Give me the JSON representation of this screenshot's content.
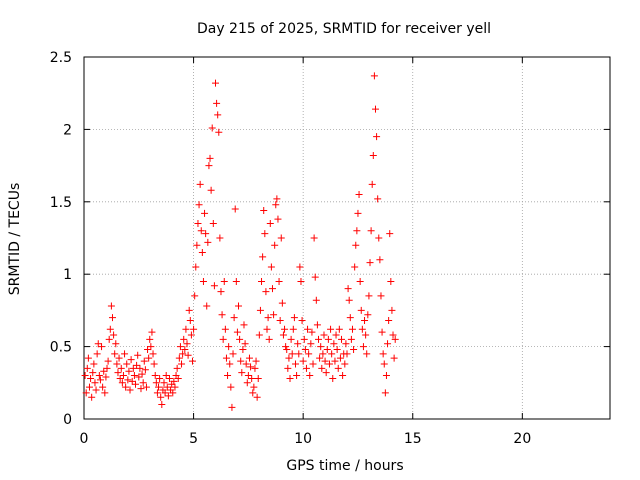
{
  "chart_data": {
    "type": "scatter",
    "title": "Day 215 of 2025, SRMTID for receiver yell",
    "xlabel": "GPS time / hours",
    "ylabel": "SRMTID / TECUs",
    "xlim": [
      0,
      24
    ],
    "ylim": [
      0,
      2.5
    ],
    "xticks": [
      0,
      5,
      10,
      15,
      20
    ],
    "xtick_labels": [
      "0",
      "5",
      "10",
      "15",
      "20"
    ],
    "yticks": [
      0,
      0.5,
      1,
      1.5,
      2,
      2.5
    ],
    "ytick_labels": [
      "0",
      "0.5",
      "1",
      "1.5",
      "2",
      "2.5"
    ],
    "grid": true,
    "marker": "+",
    "series_color": "#ff0000",
    "series": [
      {
        "name": "SRMTID",
        "points": [
          [
            0.05,
            0.3
          ],
          [
            0.1,
            0.18
          ],
          [
            0.15,
            0.35
          ],
          [
            0.2,
            0.42
          ],
          [
            0.25,
            0.22
          ],
          [
            0.3,
            0.28
          ],
          [
            0.35,
            0.15
          ],
          [
            0.4,
            0.32
          ],
          [
            0.45,
            0.38
          ],
          [
            0.5,
            0.25
          ],
          [
            0.55,
            0.2
          ],
          [
            0.6,
            0.45
          ],
          [
            0.65,
            0.52
          ],
          [
            0.7,
            0.3
          ],
          [
            0.75,
            0.27
          ],
          [
            0.8,
            0.5
          ],
          [
            0.85,
            0.22
          ],
          [
            0.9,
            0.33
          ],
          [
            0.95,
            0.18
          ],
          [
            1.0,
            0.29
          ],
          [
            1.05,
            0.35
          ],
          [
            1.1,
            0.4
          ],
          [
            1.15,
            0.55
          ],
          [
            1.2,
            0.62
          ],
          [
            1.25,
            0.78
          ],
          [
            1.3,
            0.7
          ],
          [
            1.35,
            0.58
          ],
          [
            1.4,
            0.45
          ],
          [
            1.45,
            0.52
          ],
          [
            1.5,
            0.38
          ],
          [
            1.55,
            0.32
          ],
          [
            1.6,
            0.42
          ],
          [
            1.65,
            0.28
          ],
          [
            1.7,
            0.35
          ],
          [
            1.75,
            0.25
          ],
          [
            1.8,
            0.3
          ],
          [
            1.85,
            0.45
          ],
          [
            1.9,
            0.22
          ],
          [
            1.95,
            0.38
          ],
          [
            2.0,
            0.27
          ],
          [
            2.05,
            0.33
          ],
          [
            2.1,
            0.2
          ],
          [
            2.15,
            0.41
          ],
          [
            2.2,
            0.26
          ],
          [
            2.25,
            0.35
          ],
          [
            2.3,
            0.3
          ],
          [
            2.35,
            0.24
          ],
          [
            2.4,
            0.37
          ],
          [
            2.45,
            0.44
          ],
          [
            2.5,
            0.29
          ],
          [
            2.55,
            0.35
          ],
          [
            2.6,
            0.21
          ],
          [
            2.65,
            0.31
          ],
          [
            2.7,
            0.25
          ],
          [
            2.75,
            0.4
          ],
          [
            2.8,
            0.34
          ],
          [
            2.85,
            0.22
          ],
          [
            2.9,
            0.48
          ],
          [
            2.95,
            0.42
          ],
          [
            3.0,
            0.55
          ],
          [
            3.05,
            0.5
          ],
          [
            3.1,
            0.6
          ],
          [
            3.15,
            0.45
          ],
          [
            3.2,
            0.38
          ],
          [
            3.25,
            0.3
          ],
          [
            3.3,
            0.25
          ],
          [
            3.35,
            0.18
          ],
          [
            3.4,
            0.22
          ],
          [
            3.45,
            0.28
          ],
          [
            3.5,
            0.15
          ],
          [
            3.55,
            0.1
          ],
          [
            3.6,
            0.2
          ],
          [
            3.65,
            0.25
          ],
          [
            3.7,
            0.18
          ],
          [
            3.75,
            0.3
          ],
          [
            3.8,
            0.22
          ],
          [
            3.85,
            0.16
          ],
          [
            3.9,
            0.28
          ],
          [
            3.95,
            0.2
          ],
          [
            4.0,
            0.24
          ],
          [
            4.05,
            0.18
          ],
          [
            4.1,
            0.26
          ],
          [
            4.15,
            0.22
          ],
          [
            4.2,
            0.3
          ],
          [
            4.25,
            0.35
          ],
          [
            4.3,
            0.28
          ],
          [
            4.35,
            0.42
          ],
          [
            4.4,
            0.5
          ],
          [
            4.45,
            0.38
          ],
          [
            4.5,
            0.45
          ],
          [
            4.55,
            0.55
          ],
          [
            4.6,
            0.48
          ],
          [
            4.65,
            0.62
          ],
          [
            4.7,
            0.52
          ],
          [
            4.75,
            0.44
          ],
          [
            4.8,
            0.75
          ],
          [
            4.85,
            0.68
          ],
          [
            4.9,
            0.58
          ],
          [
            4.95,
            0.4
          ],
          [
            5.0,
            0.62
          ],
          [
            5.05,
            0.85
          ],
          [
            5.1,
            1.05
          ],
          [
            5.15,
            1.2
          ],
          [
            5.2,
            1.35
          ],
          [
            5.25,
            1.48
          ],
          [
            5.3,
            1.62
          ],
          [
            5.35,
            1.3
          ],
          [
            5.4,
            1.15
          ],
          [
            5.45,
            0.95
          ],
          [
            5.5,
            1.42
          ],
          [
            5.55,
            1.28
          ],
          [
            5.6,
            0.78
          ],
          [
            5.65,
            1.22
          ],
          [
            5.7,
            1.75
          ],
          [
            5.75,
            1.8
          ],
          [
            5.8,
            1.58
          ],
          [
            5.85,
            2.01
          ],
          [
            5.9,
            1.35
          ],
          [
            5.95,
            0.92
          ],
          [
            6.0,
            2.32
          ],
          [
            6.05,
            2.18
          ],
          [
            6.1,
            2.1
          ],
          [
            6.15,
            1.98
          ],
          [
            6.2,
            1.25
          ],
          [
            6.25,
            0.88
          ],
          [
            6.3,
            0.72
          ],
          [
            6.35,
            0.55
          ],
          [
            6.4,
            0.95
          ],
          [
            6.45,
            0.62
          ],
          [
            6.5,
            0.42
          ],
          [
            6.55,
            0.3
          ],
          [
            6.6,
            0.5
          ],
          [
            6.65,
            0.38
          ],
          [
            6.7,
            0.22
          ],
          [
            6.75,
            0.08
          ],
          [
            6.8,
            0.45
          ],
          [
            6.85,
            0.7
          ],
          [
            6.9,
            1.45
          ],
          [
            6.95,
            0.95
          ],
          [
            7.0,
            0.6
          ],
          [
            7.05,
            0.78
          ],
          [
            7.1,
            0.55
          ],
          [
            7.15,
            0.4
          ],
          [
            7.2,
            0.32
          ],
          [
            7.25,
            0.48
          ],
          [
            7.3,
            0.65
          ],
          [
            7.35,
            0.52
          ],
          [
            7.4,
            0.38
          ],
          [
            7.45,
            0.25
          ],
          [
            7.5,
            0.3
          ],
          [
            7.55,
            0.42
          ],
          [
            7.6,
            0.36
          ],
          [
            7.65,
            0.28
          ],
          [
            7.7,
            0.18
          ],
          [
            7.75,
            0.22
          ],
          [
            7.8,
            0.35
          ],
          [
            7.85,
            0.4
          ],
          [
            7.9,
            0.15
          ],
          [
            7.95,
            0.28
          ],
          [
            8.0,
            0.58
          ],
          [
            8.05,
            0.75
          ],
          [
            8.1,
            0.95
          ],
          [
            8.15,
            1.12
          ],
          [
            8.2,
            1.44
          ],
          [
            8.25,
            1.28
          ],
          [
            8.3,
            0.88
          ],
          [
            8.35,
            0.62
          ],
          [
            8.4,
            0.7
          ],
          [
            8.45,
            0.55
          ],
          [
            8.5,
            1.35
          ],
          [
            8.55,
            1.05
          ],
          [
            8.6,
            0.9
          ],
          [
            8.65,
            0.72
          ],
          [
            8.7,
            1.2
          ],
          [
            8.75,
            1.48
          ],
          [
            8.8,
            1.52
          ],
          [
            8.85,
            1.38
          ],
          [
            8.9,
            0.95
          ],
          [
            8.95,
            0.68
          ],
          [
            9.0,
            1.25
          ],
          [
            9.05,
            0.8
          ],
          [
            9.1,
            0.58
          ],
          [
            9.15,
            0.62
          ],
          [
            9.2,
            0.5
          ],
          [
            9.25,
            0.48
          ],
          [
            9.3,
            0.35
          ],
          [
            9.35,
            0.42
          ],
          [
            9.4,
            0.28
          ],
          [
            9.45,
            0.55
          ],
          [
            9.5,
            0.45
          ],
          [
            9.55,
            0.62
          ],
          [
            9.6,
            0.7
          ],
          [
            9.65,
            0.38
          ],
          [
            9.7,
            0.3
          ],
          [
            9.75,
            0.52
          ],
          [
            9.8,
            0.45
          ],
          [
            9.85,
            1.05
          ],
          [
            9.9,
            0.95
          ],
          [
            9.95,
            0.68
          ],
          [
            10.0,
            0.4
          ],
          [
            10.05,
            0.55
          ],
          [
            10.1,
            0.48
          ],
          [
            10.15,
            0.35
          ],
          [
            10.2,
            0.62
          ],
          [
            10.25,
            0.45
          ],
          [
            10.3,
            0.3
          ],
          [
            10.35,
            0.52
          ],
          [
            10.4,
            0.6
          ],
          [
            10.45,
            0.38
          ],
          [
            10.5,
            1.25
          ],
          [
            10.55,
            0.98
          ],
          [
            10.6,
            0.82
          ],
          [
            10.65,
            0.65
          ],
          [
            10.7,
            0.55
          ],
          [
            10.75,
            0.42
          ],
          [
            10.8,
            0.5
          ],
          [
            10.85,
            0.35
          ],
          [
            10.9,
            0.45
          ],
          [
            10.95,
            0.58
          ],
          [
            11.0,
            0.4
          ],
          [
            11.05,
            0.32
          ],
          [
            11.1,
            0.48
          ],
          [
            11.15,
            0.55
          ],
          [
            11.2,
            0.38
          ],
          [
            11.25,
            0.62
          ],
          [
            11.3,
            0.45
          ],
          [
            11.35,
            0.28
          ],
          [
            11.4,
            0.52
          ],
          [
            11.45,
            0.4
          ],
          [
            11.5,
            0.58
          ],
          [
            11.55,
            0.48
          ],
          [
            11.6,
            0.35
          ],
          [
            11.65,
            0.62
          ],
          [
            11.7,
            0.42
          ],
          [
            11.75,
            0.55
          ],
          [
            11.8,
            0.3
          ],
          [
            11.85,
            0.45
          ],
          [
            11.9,
            0.38
          ],
          [
            11.95,
            0.52
          ],
          [
            12.0,
            0.45
          ],
          [
            12.05,
            0.9
          ],
          [
            12.1,
            0.82
          ],
          [
            12.15,
            0.7
          ],
          [
            12.2,
            0.55
          ],
          [
            12.25,
            0.62
          ],
          [
            12.3,
            0.48
          ],
          [
            12.35,
            1.05
          ],
          [
            12.4,
            1.2
          ],
          [
            12.45,
            1.3
          ],
          [
            12.5,
            1.42
          ],
          [
            12.55,
            1.55
          ],
          [
            12.6,
            0.95
          ],
          [
            12.65,
            0.75
          ],
          [
            12.7,
            0.62
          ],
          [
            12.75,
            0.5
          ],
          [
            12.8,
            0.68
          ],
          [
            12.85,
            0.58
          ],
          [
            12.9,
            0.45
          ],
          [
            12.95,
            0.72
          ],
          [
            13.0,
            0.85
          ],
          [
            13.05,
            1.08
          ],
          [
            13.1,
            1.3
          ],
          [
            13.15,
            1.62
          ],
          [
            13.2,
            1.82
          ],
          [
            13.25,
            2.37
          ],
          [
            13.3,
            2.14
          ],
          [
            13.35,
            1.95
          ],
          [
            13.4,
            1.52
          ],
          [
            13.45,
            1.25
          ],
          [
            13.5,
            1.1
          ],
          [
            13.55,
            0.85
          ],
          [
            13.6,
            0.6
          ],
          [
            13.65,
            0.45
          ],
          [
            13.7,
            0.38
          ],
          [
            13.75,
            0.18
          ],
          [
            13.8,
            0.3
          ],
          [
            13.85,
            0.52
          ],
          [
            13.9,
            0.68
          ],
          [
            13.95,
            1.28
          ],
          [
            14.0,
            0.95
          ],
          [
            14.05,
            0.75
          ],
          [
            14.1,
            0.58
          ],
          [
            14.15,
            0.42
          ],
          [
            14.2,
            0.55
          ]
        ]
      }
    ]
  }
}
